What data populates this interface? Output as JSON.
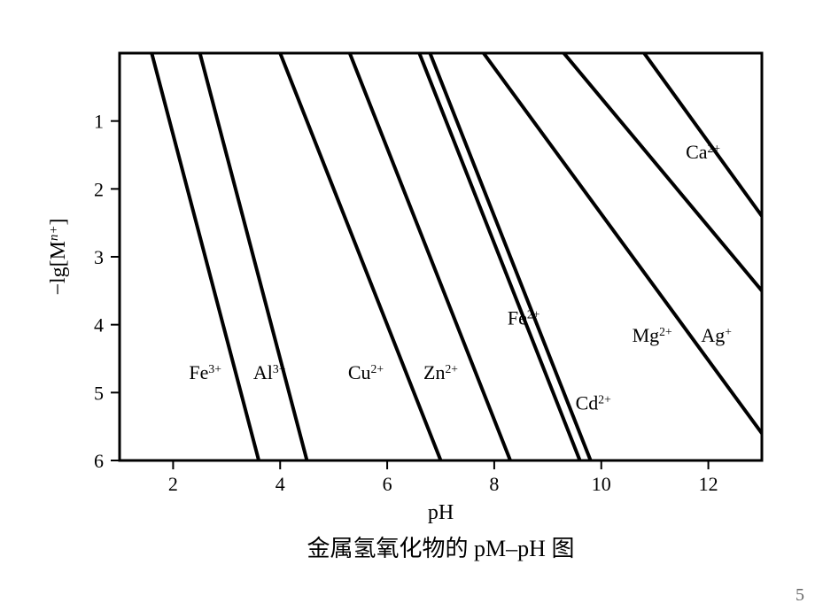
{
  "chart": {
    "type": "line",
    "title": "金属氢氧化物的 pM–pH 图",
    "title_fontsize": 26,
    "xlabel": "pH",
    "ylabel_prefix": "−lg[M",
    "ylabel_exp": "n+",
    "ylabel_suffix": "]",
    "label_fontsize": 24,
    "tick_fontsize": 22,
    "series_fontsize": 22,
    "background_color": "#ffffff",
    "axis_color": "#000000",
    "line_color": "#000000",
    "axis_width": 3,
    "line_width": 4,
    "xlim": [
      1,
      13
    ],
    "ylim_top": 0,
    "ylim_bottom": 6,
    "xticks": [
      2,
      4,
      6,
      8,
      10,
      12
    ],
    "yticks": [
      1,
      2,
      3,
      4,
      5,
      6
    ],
    "series": [
      {
        "name": "Fe3+",
        "base": "Fe",
        "sup": "3+",
        "x1": 1.6,
        "y1": 0.0,
        "x2": 3.6,
        "y2": 6.0,
        "lx": 2.6,
        "ly": 4.8
      },
      {
        "name": "Al3+",
        "base": "Al",
        "sup": "3+",
        "x1": 2.5,
        "y1": 0.0,
        "x2": 4.5,
        "y2": 6.0,
        "lx": 3.8,
        "ly": 4.8
      },
      {
        "name": "Cu2+",
        "base": "Cu",
        "sup": "2+",
        "x1": 4.0,
        "y1": 0.0,
        "x2": 7.0,
        "y2": 6.0,
        "lx": 5.6,
        "ly": 4.8
      },
      {
        "name": "Zn2+",
        "base": "Zn",
        "sup": "2+",
        "x1": 5.3,
        "y1": 0.0,
        "x2": 8.3,
        "y2": 6.0,
        "lx": 7.0,
        "ly": 4.8
      },
      {
        "name": "Fe2+",
        "base": "Fe",
        "sup": "2+",
        "x1": 6.6,
        "y1": 0.0,
        "x2": 9.6,
        "y2": 6.0,
        "lx": 8.55,
        "ly": 4.0
      },
      {
        "name": "Cd2+",
        "base": "Cd",
        "sup": "2+",
        "x1": 6.8,
        "y1": 0.0,
        "x2": 9.8,
        "y2": 6.0,
        "lx": 9.85,
        "ly": 5.25
      },
      {
        "name": "Mg2+",
        "base": "Mg",
        "sup": "2+",
        "x1": 7.8,
        "y1": 0.0,
        "x2": 13.0,
        "y2": 5.6,
        "lx": 10.95,
        "ly": 4.25
      },
      {
        "name": "Ag+",
        "base": "Ag",
        "sup": "+",
        "x1": 9.3,
        "y1": 0.0,
        "x2": 13.0,
        "y2": 3.5,
        "lx": 12.15,
        "ly": 4.25
      },
      {
        "name": "Ca2+",
        "base": "Ca",
        "sup": "2+",
        "x1": 10.8,
        "y1": 0.0,
        "x2": 13.0,
        "y2": 2.4,
        "lx": 11.9,
        "ly": 1.55
      }
    ]
  },
  "corner_number": "5"
}
